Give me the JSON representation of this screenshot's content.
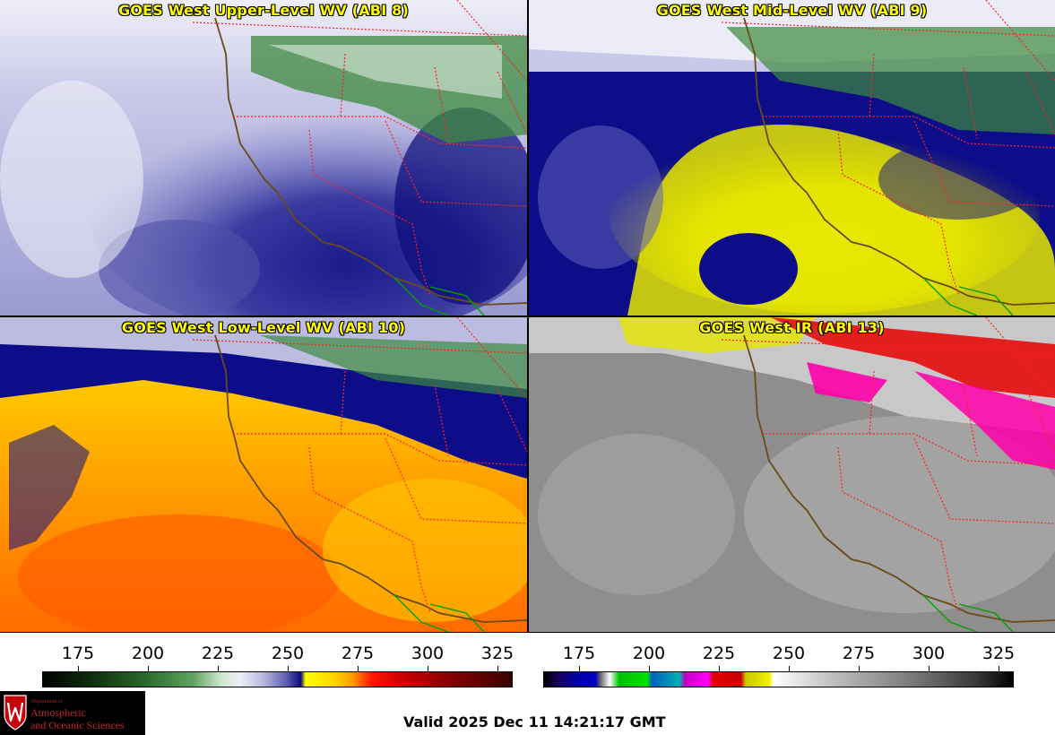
{
  "panels": {
    "upper": {
      "title": "GOES West Upper-Level WV (ABI 8)",
      "colors": [
        "#e8e8f6",
        "#5a5ab0",
        "#0a0a7a",
        "#3d8a3d"
      ]
    },
    "mid": {
      "title": "GOES West Mid-Level WV (ABI 9)",
      "colors": [
        "#dcdcf0",
        "#0a0a8c",
        "#e6e600",
        "#3d8a3d"
      ]
    },
    "low": {
      "title": "GOES West Low-Level WV (ABI 10)",
      "colors": [
        "#ffd200",
        "#ff8c00",
        "#ff5500",
        "#0a0a8c"
      ]
    },
    "ir": {
      "title": "GOES West IR (ABI 13)",
      "colors": [
        "#8c8c8c",
        "#b4b4b4",
        "#ff00aa",
        "#e60000"
      ]
    }
  },
  "colorbars": {
    "wv": {
      "ticks": [
        "175",
        "200",
        "225",
        "250",
        "275",
        "300",
        "325"
      ]
    },
    "ir": {
      "ticks": [
        "175",
        "200",
        "225",
        "250",
        "275",
        "300",
        "325"
      ]
    }
  },
  "logo": {
    "dept": "Department of",
    "line1": "Atmospheric",
    "line2": "and Oceanic Sciences"
  },
  "valid_time": "Valid 2025 Dec 11 14:21:17 GMT",
  "map_lines": {
    "state_border": "#ff2020",
    "coast": "#6b4a1a",
    "border_mx": "#00a000"
  }
}
